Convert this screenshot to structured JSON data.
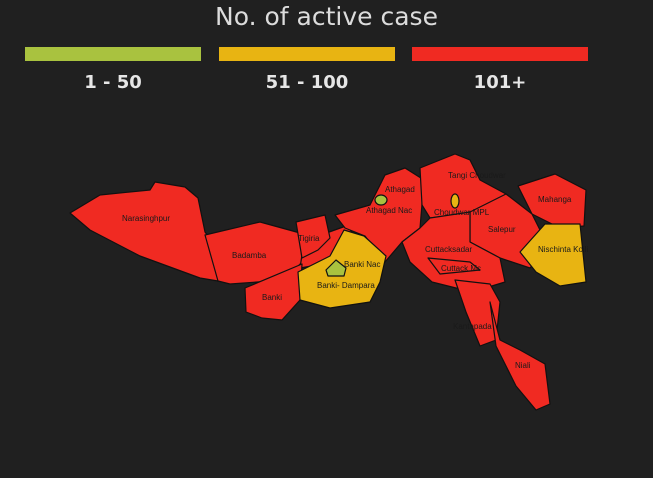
{
  "title": "No. of active case",
  "legend": [
    {
      "label": "1 - 50",
      "color": "#a9c23f"
    },
    {
      "label": "51 - 100",
      "color": "#e8b412"
    },
    {
      "label": "101+",
      "color": "#f02a22"
    }
  ],
  "regions": {
    "narasinghpur": {
      "name": "Narasinghpur",
      "category": "101+"
    },
    "badamba": {
      "name": "Badamba",
      "category": "101+"
    },
    "tigiria": {
      "name": "Tigiria",
      "category": "101+"
    },
    "banki": {
      "name": "Banki",
      "category": "101+"
    },
    "banki_nac": {
      "name": "Banki Nac",
      "category": "1 - 50"
    },
    "banki_dampara": {
      "name": "Banki- Dampara",
      "category": "51 - 100"
    },
    "athagad": {
      "name": "Athagad",
      "category": "101+"
    },
    "athagad_nac": {
      "name": "Athagad Nac",
      "category": "1 - 50"
    },
    "tangi_choudwar": {
      "name": "Tangi Choudwar",
      "category": "101+"
    },
    "choudwar_mpl": {
      "name": "Choudwar MPL",
      "category": "51 - 100"
    },
    "mahanga": {
      "name": "Mahanga",
      "category": "101+"
    },
    "salepur": {
      "name": "Salepur",
      "category": "101+"
    },
    "nischinta_koili": {
      "name": "Nischinta Koili",
      "category": "51 - 100"
    },
    "cuttacksadar": {
      "name": "Cuttacksadar",
      "category": "101+"
    },
    "cuttack_mc": {
      "name": "Cuttack Mc",
      "category": "101+"
    },
    "kantapada": {
      "name": "Kantapada",
      "category": "101+"
    },
    "niali": {
      "name": "Niali",
      "category": "101+"
    }
  }
}
